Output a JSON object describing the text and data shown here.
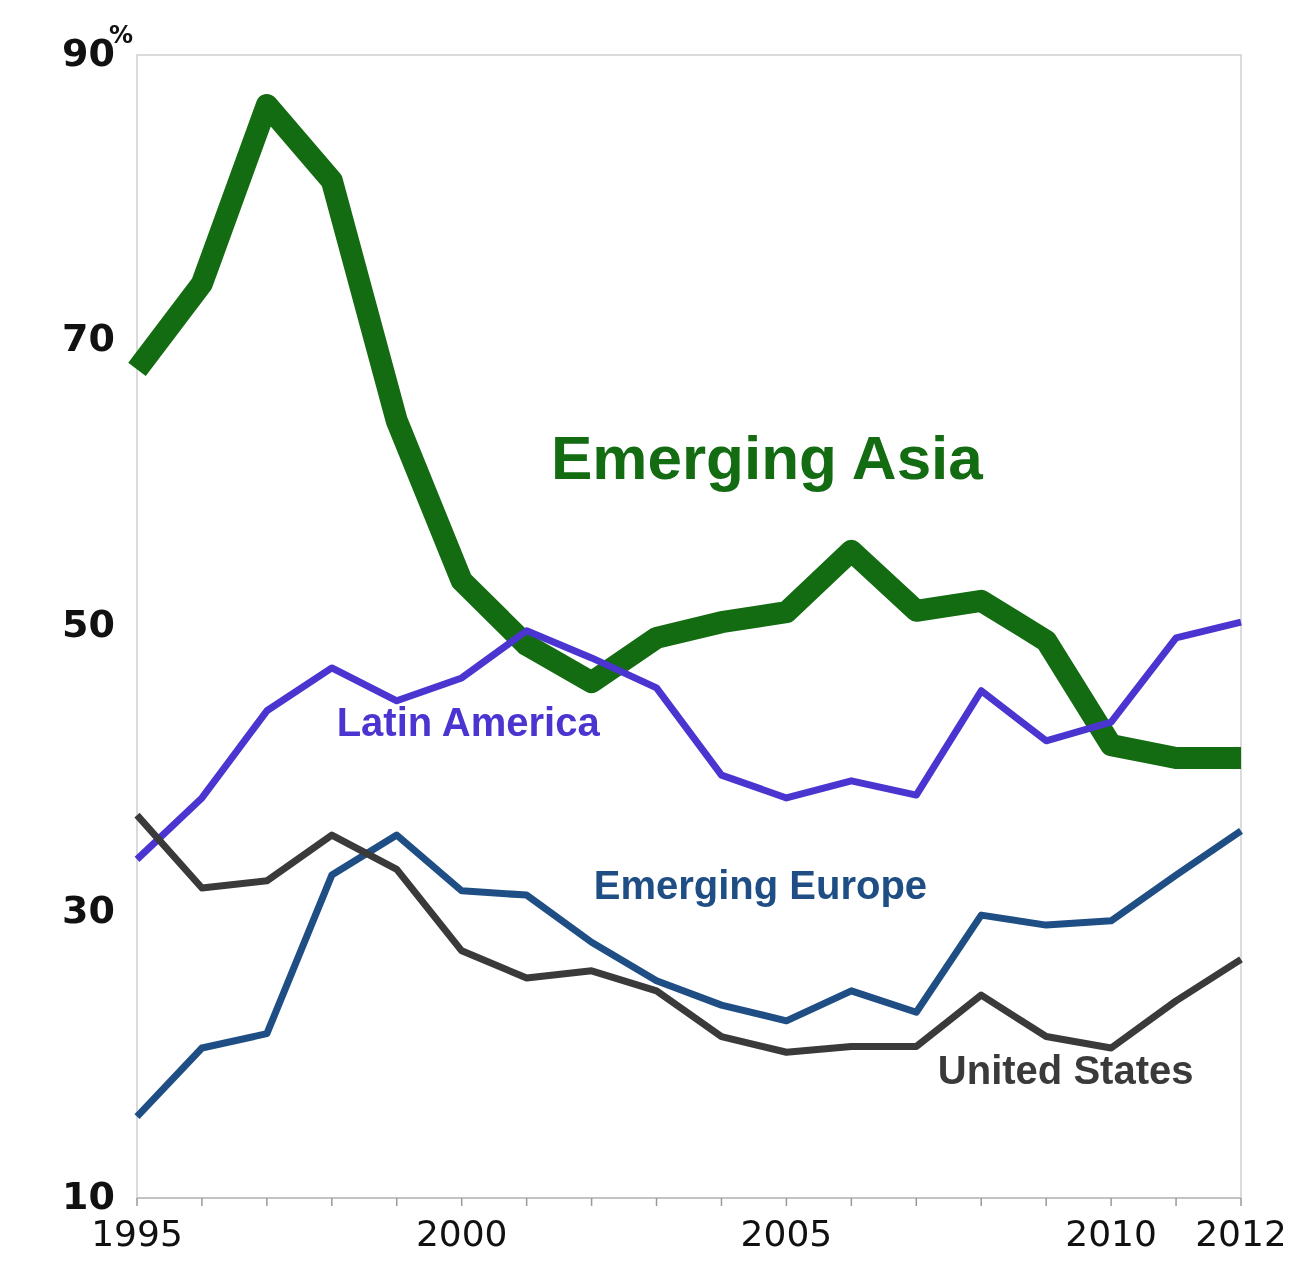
{
  "chart_data": {
    "type": "line",
    "ylabel": "%",
    "x": [
      1995,
      1996,
      1997,
      1998,
      1999,
      2000,
      2001,
      2002,
      2003,
      2004,
      2005,
      2006,
      2007,
      2008,
      2009,
      2010,
      2011,
      2012
    ],
    "series": [
      {
        "name": "Emerging Asia",
        "color": "#136b12",
        "values": [
          68,
          74,
          86.5,
          81.2,
          64.4,
          53.2,
          48.7,
          46.1,
          49.2,
          50.3,
          51,
          55.3,
          51.1,
          51.8,
          49,
          41.7,
          40.8,
          40.8
        ]
      },
      {
        "name": "Latin America",
        "color": "#4a35d0",
        "values": [
          33.7,
          38,
          44.1,
          47.1,
          44.8,
          46.4,
          49.7,
          47.8,
          45.7,
          39.6,
          38,
          39.2,
          38.2,
          45.5,
          42,
          43.3,
          49.2,
          50.3
        ]
      },
      {
        "name": "Emerging Europe",
        "color": "#1f4e85",
        "values": [
          15.7,
          20.5,
          21.5,
          32.6,
          35.4,
          31.5,
          31.2,
          27.9,
          25.2,
          23.5,
          22.4,
          24.5,
          23,
          29.8,
          29.1,
          29.4,
          32.6,
          35.7
        ]
      },
      {
        "name": "United States",
        "color": "#3a3a3a",
        "values": [
          36.8,
          31.7,
          32.2,
          35.4,
          33,
          27.3,
          25.4,
          25.9,
          24.5,
          21.3,
          20.2,
          20.6,
          20.6,
          24.2,
          21.3,
          20.5,
          23.8,
          26.7
        ]
      }
    ],
    "xlim": [
      1995,
      2012
    ],
    "xticks": [
      1995,
      {
        "value": 1996,
        "label": null
      },
      {
        "value": 1997,
        "label": null
      },
      {
        "value": 1998,
        "label": null
      },
      {
        "value": 1999,
        "label": null
      },
      2000,
      {
        "value": 2001,
        "label": null
      },
      {
        "value": 2002,
        "label": null
      },
      {
        "value": 2003,
        "label": null
      },
      {
        "value": 2004,
        "label": null
      },
      2005,
      {
        "value": 2006,
        "label": null
      },
      {
        "value": 2007,
        "label": null
      },
      {
        "value": 2008,
        "label": null
      },
      {
        "value": 2009,
        "label": null
      },
      2010,
      {
        "value": 2011,
        "label": null
      },
      2012
    ],
    "ylim": [
      10,
      90
    ],
    "yticks": [
      10,
      30,
      50,
      70,
      90
    ],
    "grid": false,
    "legend": false,
    "marker": "none",
    "line_style": "solid"
  }
}
